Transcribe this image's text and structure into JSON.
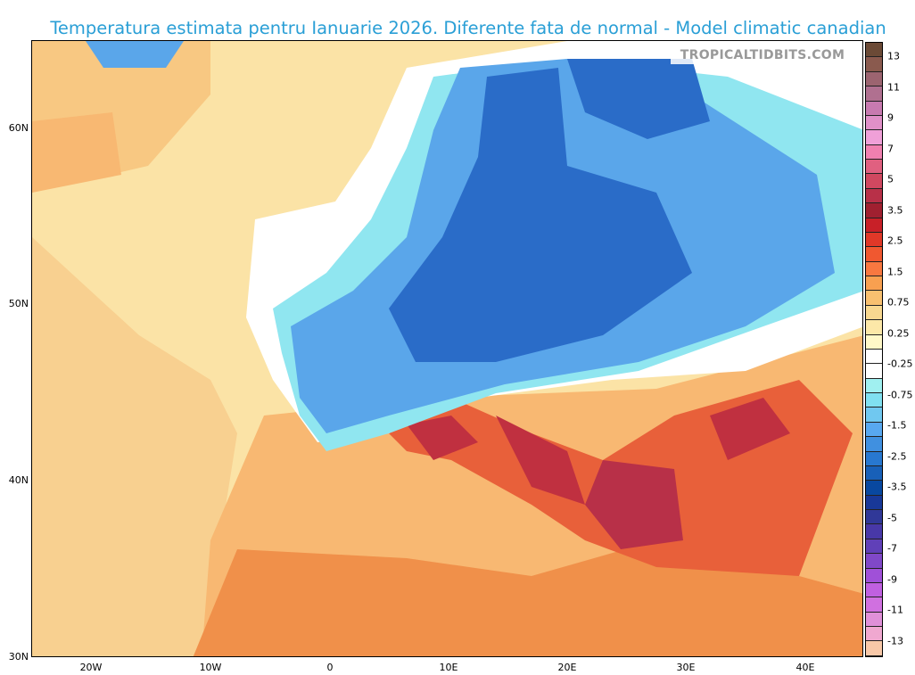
{
  "title": "Temperatura estimata pentru Ianuarie 2026. Diferente fata de normal - Model climatic canadian",
  "watermark": "TROPICALTIDBITS.COM",
  "axes": {
    "lat_labels": [
      "60N",
      "50N",
      "40N",
      "30N"
    ],
    "lon_labels": [
      "20W",
      "10W",
      "0",
      "10E",
      "20E",
      "30E",
      "40E"
    ]
  },
  "colorbar": {
    "labels": [
      "13",
      "11",
      "9",
      "7",
      "5",
      "3.5",
      "2.5",
      "1.5",
      "0.75",
      "0.25",
      "-0.25",
      "-0.75",
      "-1.5",
      "-2.5",
      "-3.5",
      "-5",
      "-7",
      "-9",
      "-11",
      "-13"
    ],
    "colors": [
      "#6b4a36",
      "#8a5a4e",
      "#9c6470",
      "#b07090",
      "#c87ab0",
      "#e090c8",
      "#f0a0d8",
      "#f080b0",
      "#e06080",
      "#d04860",
      "#b83048",
      "#a02030",
      "#c82028",
      "#e03828",
      "#f05830",
      "#f87840",
      "#f8a050",
      "#f8c070",
      "#f8d890",
      "#fce8a8",
      "#fff8c8",
      "#ffffff",
      "#ffffff",
      "#a0f0f0",
      "#80e0f0",
      "#70c8f0",
      "#58a8f0",
      "#4090e0",
      "#2878d0",
      "#1860b8",
      "#0848a0",
      "#183898",
      "#303898",
      "#4838a8",
      "#6040b8",
      "#8048c8",
      "#a050d8",
      "#c060e0",
      "#d070e0",
      "#e090d8",
      "#f0a8d0",
      "#f8c8a8"
    ]
  },
  "palette": {
    "warm_light": "#fbe3a6",
    "warm": "#f8b872",
    "hot": "#e8603a",
    "very_hot": "#c03040",
    "cold_light": "#90e6f0",
    "cold": "#5aa6ea",
    "very_cold": "#2a6cc8"
  }
}
